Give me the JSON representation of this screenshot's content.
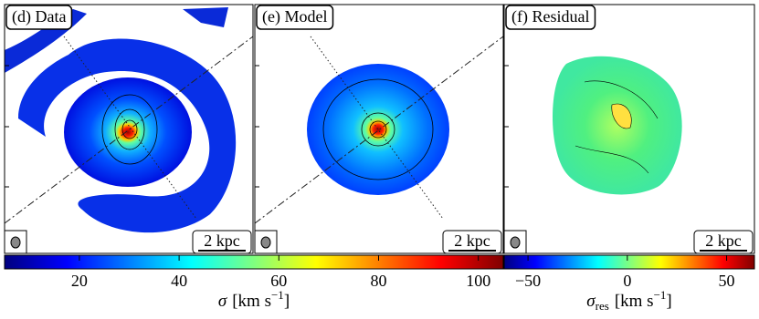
{
  "panels": [
    {
      "label": "(d) Data",
      "scale_bar": "2 kpc"
    },
    {
      "label": "(e) Model",
      "scale_bar": "2 kpc"
    },
    {
      "label": "(f) Residual",
      "scale_bar": "2 kpc"
    }
  ],
  "chart_data": [
    {
      "type": "colorbar",
      "colormap": "jet",
      "xlim": [
        5,
        105
      ],
      "xticks": [
        20,
        40,
        60,
        80,
        100
      ],
      "label": {
        "symbol": "σ",
        "unit": "[km s",
        "power": "−1",
        "close": "]"
      }
    },
    {
      "type": "colorbar",
      "colormap": "jet",
      "xlim": [
        -62,
        64
      ],
      "xticks": [
        {
          "value": -50,
          "label": "−50"
        },
        0,
        50
      ],
      "label": {
        "symbol": "σ",
        "sub": "res",
        "unit": "[km s",
        "power": "−1",
        "close": "]"
      }
    }
  ]
}
